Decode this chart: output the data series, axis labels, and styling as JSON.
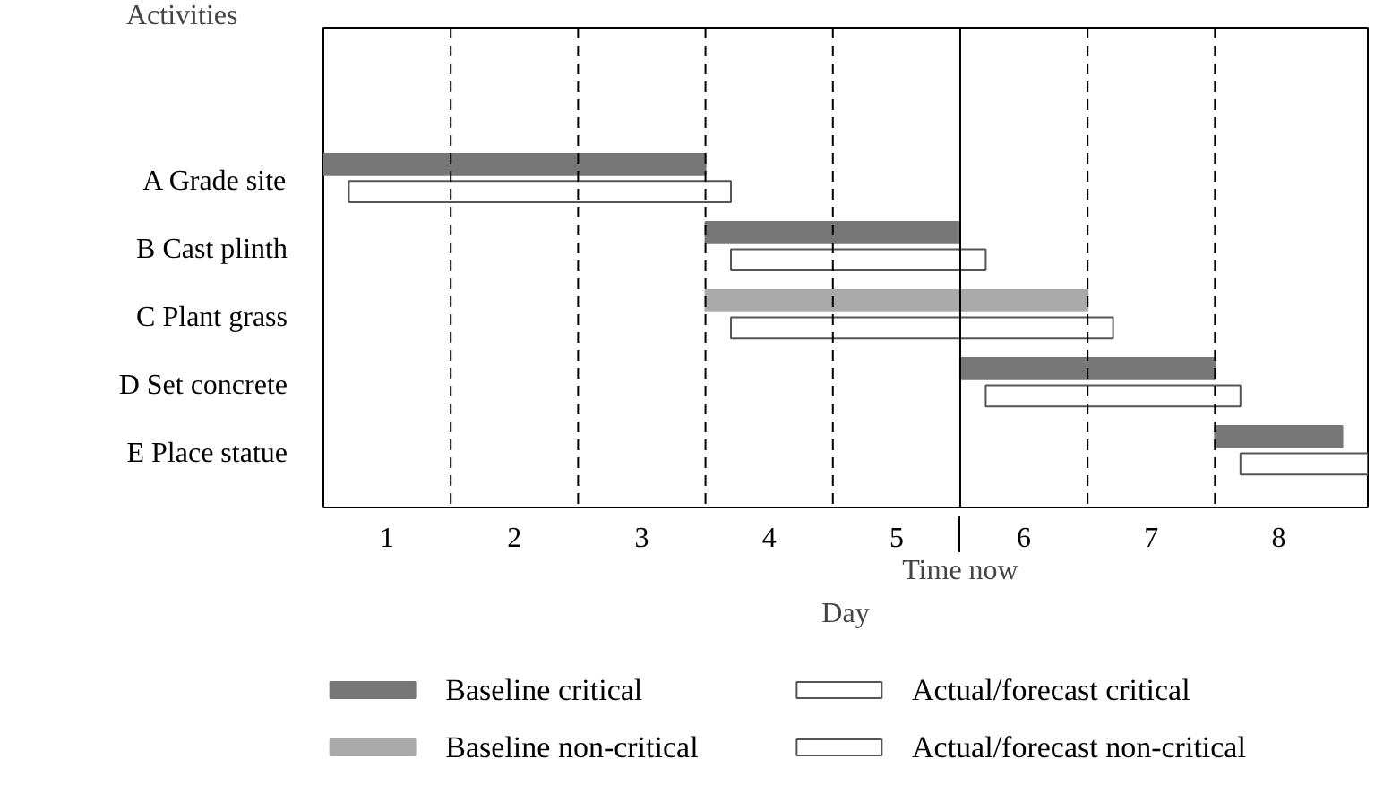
{
  "chart_data": {
    "type": "bar",
    "orientation": "horizontal",
    "ylabel": "Activities",
    "xlabel": "Day",
    "categories": [
      "A Grade site",
      "B Cast plinth",
      "C Plant grass",
      "D Set concrete",
      "E Place statue"
    ],
    "series": [
      {
        "name": "Baseline critical",
        "color": "#777777",
        "base": [
          0.5,
          3.5,
          null,
          5.5,
          7.5
        ],
        "values": [
          3,
          2,
          null,
          2,
          1
        ]
      },
      {
        "name": "Baseline non-critical",
        "color": "#aaaaaa",
        "base": [
          null,
          null,
          3.5,
          null,
          null
        ],
        "values": [
          null,
          null,
          3,
          null,
          null
        ]
      },
      {
        "name": "Actual/forecast critical",
        "color": "#ffffff",
        "base": [
          0.7,
          3.7,
          null,
          5.7,
          7.7
        ],
        "values": [
          3,
          2,
          null,
          2,
          1
        ]
      },
      {
        "name": "Actual/forecast non-critical",
        "color": "#ffffff",
        "base": [
          null,
          null,
          3.7,
          null,
          null
        ],
        "values": [
          null,
          null,
          3,
          null,
          null
        ]
      }
    ],
    "xlim": [
      0.5,
      8.7
    ],
    "xticks": [
      1,
      2,
      3,
      4,
      5,
      6,
      7,
      8
    ],
    "ref_lines": [
      {
        "axis": "x",
        "value": 1.5,
        "line_style": "dashed"
      },
      {
        "axis": "x",
        "value": 2.5,
        "line_style": "dashed"
      },
      {
        "axis": "x",
        "value": 3.5,
        "line_style": "dashed"
      },
      {
        "axis": "x",
        "value": 4.5,
        "line_style": "dashed"
      },
      {
        "axis": "x",
        "value": 5.5,
        "line_style": "solid",
        "label": "Time now"
      },
      {
        "axis": "x",
        "value": 6.5,
        "line_style": "dashed"
      },
      {
        "axis": "x",
        "value": 7.5,
        "line_style": "dashed"
      }
    ],
    "grid": false,
    "legend": "bottom"
  }
}
